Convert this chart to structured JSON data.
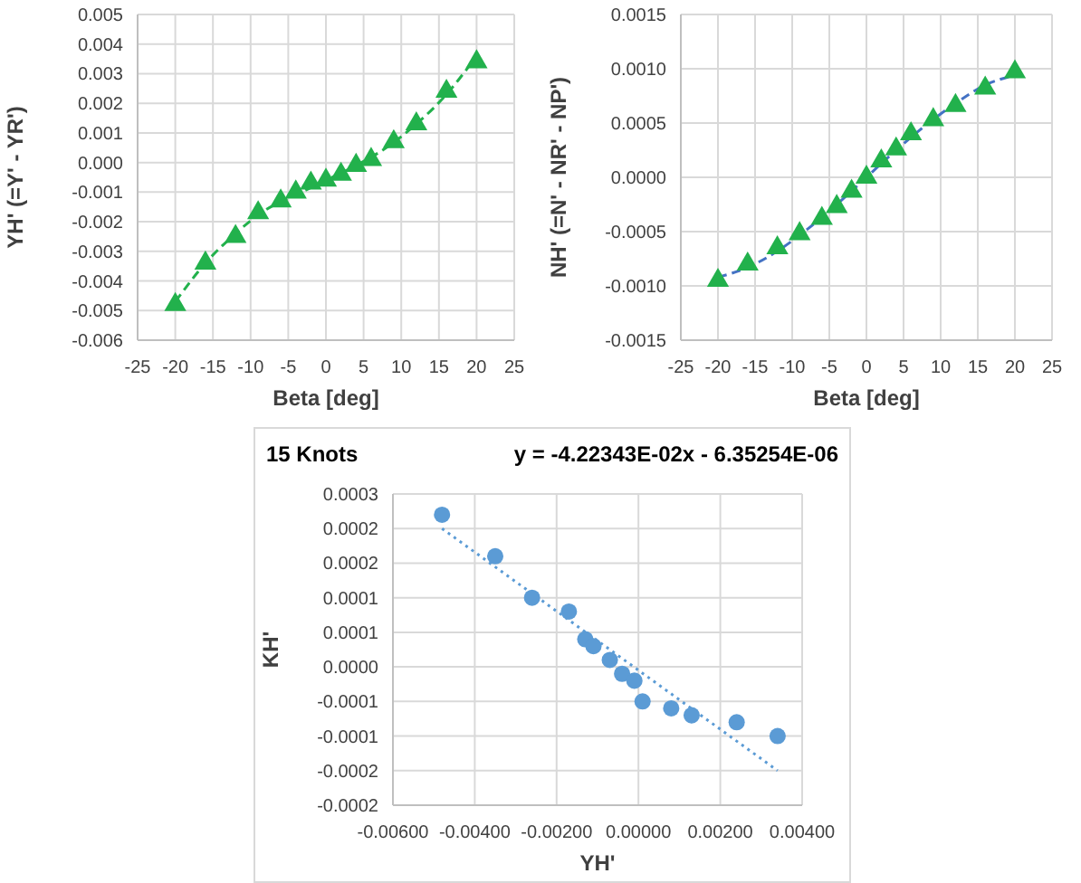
{
  "chart_data": [
    {
      "type": "scatter",
      "xlabel": "Beta [deg]",
      "ylabel": "YH' (=Y' - YR')",
      "xlim": [
        -25,
        25
      ],
      "xticks": [
        -25,
        -20,
        -15,
        -10,
        -5,
        0,
        5,
        10,
        15,
        20,
        25
      ],
      "ylim": [
        -0.006,
        0.005
      ],
      "yticks": [
        {
          "value": -0.006,
          "label": "-0.006"
        },
        {
          "value": -0.005,
          "label": "-0.005"
        },
        {
          "value": -0.004,
          "label": "-0.004"
        },
        {
          "value": -0.003,
          "label": "-0.003"
        },
        {
          "value": -0.002,
          "label": "-0.002"
        },
        {
          "value": -0.001,
          "label": "-0.001"
        },
        {
          "value": 0,
          "label": "0.000"
        },
        {
          "value": 0.001,
          "label": "0.001"
        },
        {
          "value": 0.002,
          "label": "0.002"
        },
        {
          "value": 0.003,
          "label": "0.003"
        },
        {
          "value": 0.004,
          "label": "0.004"
        },
        {
          "value": 0.005,
          "label": "0.005"
        }
      ],
      "grid": true,
      "series": [
        {
          "type": "scatter",
          "color": "#22b14c",
          "marker": "triangle",
          "x": [
            -20,
            -16,
            -12,
            -9,
            -6,
            -4,
            -2,
            0,
            2,
            4,
            6,
            9,
            12,
            16,
            20
          ],
          "values": [
            -0.0048,
            -0.0034,
            -0.0025,
            -0.0017,
            -0.0013,
            -0.001,
            -0.0007,
            -0.0006,
            -0.0004,
            -0.0001,
            0.0001,
            0.0007,
            0.0013,
            0.0024,
            0.0034
          ]
        },
        {
          "type": "line",
          "color": "#22b14c",
          "marker": "none",
          "line_style": "dashed",
          "x": [
            -20,
            -16,
            -12,
            -8,
            -4,
            0,
            4,
            8,
            12,
            16,
            20
          ],
          "values": [
            -0.0047,
            -0.0034,
            -0.0024,
            -0.0016,
            -0.0011,
            -0.0006,
            -0.0001,
            0.0005,
            0.0013,
            0.0023,
            0.0036
          ]
        }
      ]
    },
    {
      "type": "scatter",
      "xlabel": "Beta [deg]",
      "ylabel": "NH' (=N' - NR' - NP')",
      "xlim": [
        -25,
        25
      ],
      "xticks": [
        -25,
        -20,
        -15,
        -10,
        -5,
        0,
        5,
        10,
        15,
        20,
        25
      ],
      "ylim": [
        -0.0015,
        0.0015
      ],
      "yticks": [
        {
          "value": -0.0015,
          "label": "-0.0015"
        },
        {
          "value": -0.001,
          "label": "-0.0010"
        },
        {
          "value": -0.0005,
          "label": "-0.0005"
        },
        {
          "value": 0,
          "label": "0.0000"
        },
        {
          "value": 0.0005,
          "label": "0.0005"
        },
        {
          "value": 0.001,
          "label": "0.0010"
        },
        {
          "value": 0.0015,
          "label": "0.0015"
        }
      ],
      "grid": true,
      "series": [
        {
          "type": "scatter",
          "color": "#22b14c",
          "marker": "triangle",
          "x": [
            -20,
            -16,
            -12,
            -9,
            -6,
            -4,
            -2,
            0,
            2,
            4,
            6,
            9,
            12,
            16,
            20
          ],
          "values": [
            -0.00095,
            -0.0008,
            -0.00065,
            -0.00052,
            -0.00038,
            -0.00027,
            -0.00013,
            0,
            0.00015,
            0.00026,
            0.0004,
            0.00053,
            0.00066,
            0.00082,
            0.00097
          ]
        },
        {
          "type": "line",
          "color": "#4472c4",
          "marker": "none",
          "line_style": "dashed",
          "x": [
            -20,
            -16,
            -12,
            -8,
            -4,
            0,
            4,
            8,
            12,
            16,
            20
          ],
          "values": [
            -0.00092,
            -0.00083,
            -0.00068,
            -0.00048,
            -0.00025,
            0,
            0.00025,
            0.00048,
            0.00068,
            0.00085,
            0.00094
          ]
        }
      ]
    },
    {
      "type": "scatter",
      "title": "15 Knots",
      "annotations": [
        "y = -4.22343E-02x - 6.35254E-06"
      ],
      "xlabel": "YH'",
      "ylabel": "KH'",
      "xlim": [
        -0.006,
        0.004
      ],
      "xticks": [
        {
          "value": -0.006,
          "label": "-0.00600"
        },
        {
          "value": -0.004,
          "label": "-0.00400"
        },
        {
          "value": -0.002,
          "label": "-0.00200"
        },
        {
          "value": 0,
          "label": "0.00000"
        },
        {
          "value": 0.002,
          "label": "0.00200"
        },
        {
          "value": 0.004,
          "label": "0.00400"
        }
      ],
      "ylim": [
        -0.0002,
        0.00025
      ],
      "yticks": [
        {
          "value": -0.0002,
          "label": "-0.0002"
        },
        {
          "value": -0.00015,
          "label": "-0.0002"
        },
        {
          "value": -0.0001,
          "label": "-0.0001"
        },
        {
          "value": -5e-05,
          "label": "-0.0001"
        },
        {
          "value": 0,
          "label": "0.0000"
        },
        {
          "value": 5e-05,
          "label": "0.0001"
        },
        {
          "value": 0.0001,
          "label": "0.0001"
        },
        {
          "value": 0.00015,
          "label": "0.0002"
        },
        {
          "value": 0.0002,
          "label": "0.0002"
        },
        {
          "value": 0.00025,
          "label": "0.0003"
        }
      ],
      "grid": true,
      "series": [
        {
          "type": "scatter",
          "color": "#5b9bd5",
          "marker": "circle",
          "x": [
            -0.0048,
            -0.0035,
            -0.0026,
            -0.0017,
            -0.0013,
            -0.0011,
            -0.0007,
            -0.0004,
            -0.0001,
            0.0001,
            0.0008,
            0.0013,
            0.0024,
            0.0034
          ],
          "values": [
            0.00022,
            0.00016,
            0.0001,
            8e-05,
            4e-05,
            3e-05,
            1e-05,
            -1e-05,
            -2e-05,
            -5e-05,
            -6e-05,
            -7e-05,
            -8e-05,
            -0.0001
          ]
        },
        {
          "type": "line",
          "color": "#5b9bd5",
          "marker": "none",
          "line_style": "dotted",
          "x": [
            -0.0048,
            0.0034
          ],
          "values": [
            0.0002,
            -0.00015
          ]
        }
      ]
    }
  ]
}
